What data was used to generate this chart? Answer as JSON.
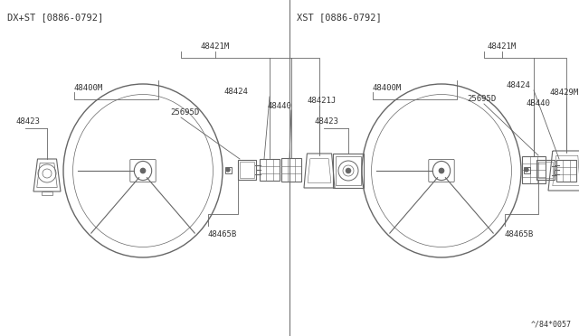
{
  "background_color": "#ffffff",
  "line_color": "#666666",
  "text_color": "#333333",
  "left_label": "DX+ST [0886-0792]",
  "right_label": "XST [0886-0792]",
  "bottom_ref": "^/84*0057",
  "font_size": 6.5,
  "label_font_size": 7.5
}
